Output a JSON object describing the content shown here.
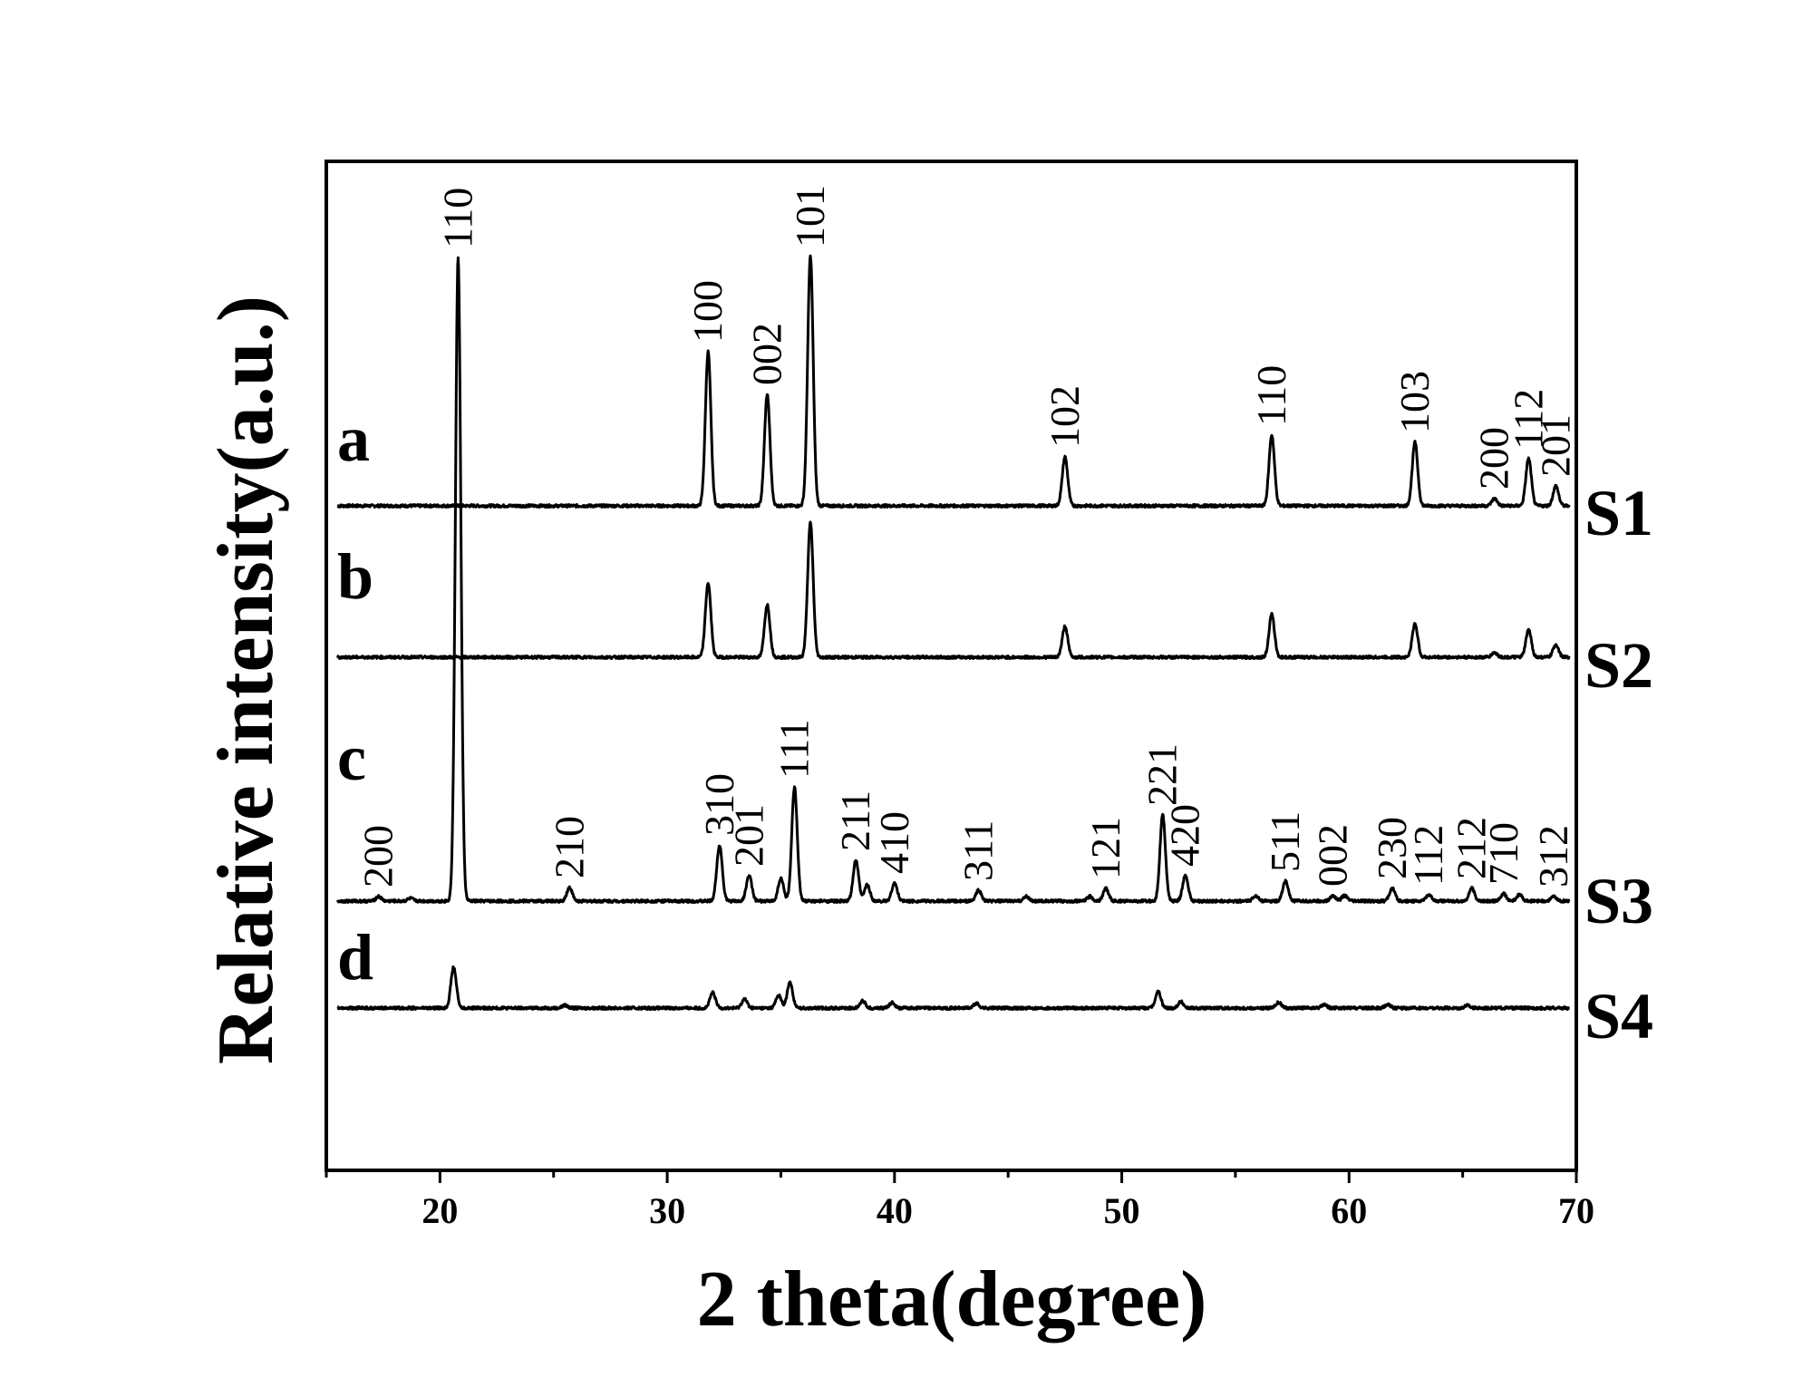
{
  "chart_data": {
    "type": "line",
    "title": "",
    "xlabel": "2 theta(degree)",
    "ylabel": "Relative intensity(a.u.)",
    "xlim": [
      15,
      70
    ],
    "xticks": [
      20,
      30,
      40,
      50,
      60,
      70
    ],
    "grid": false,
    "line_color": "#000000",
    "series": [
      {
        "name": "S1",
        "letter": "a",
        "baseline": 0,
        "peaks": [
          {
            "x": 31.8,
            "h": 170,
            "label": "100"
          },
          {
            "x": 34.4,
            "h": 123,
            "label": "002"
          },
          {
            "x": 36.3,
            "h": 275,
            "label": "101"
          },
          {
            "x": 47.5,
            "h": 54,
            "label": "102"
          },
          {
            "x": 56.6,
            "h": 78,
            "label": "110"
          },
          {
            "x": 62.9,
            "h": 70,
            "label": "103"
          },
          {
            "x": 66.4,
            "h": 8,
            "label": "200"
          },
          {
            "x": 67.9,
            "h": 52,
            "label": "112"
          },
          {
            "x": 69.1,
            "h": 22,
            "label": "201"
          }
        ]
      },
      {
        "name": "S2",
        "letter": "b",
        "baseline": 0,
        "peaks": [
          {
            "x": 31.8,
            "h": 82
          },
          {
            "x": 34.4,
            "h": 58
          },
          {
            "x": 36.3,
            "h": 148
          },
          {
            "x": 47.5,
            "h": 34
          },
          {
            "x": 56.6,
            "h": 47
          },
          {
            "x": 62.9,
            "h": 37
          },
          {
            "x": 66.4,
            "h": 5
          },
          {
            "x": 67.9,
            "h": 30
          },
          {
            "x": 69.1,
            "h": 14
          }
        ]
      },
      {
        "name": "S3",
        "letter": "c",
        "baseline": 0,
        "peaks": [
          {
            "x": 17.3,
            "h": 5,
            "label": "200"
          },
          {
            "x": 18.7,
            "h": 3
          },
          {
            "x": 20.8,
            "h": 710,
            "label": "110"
          },
          {
            "x": 25.7,
            "h": 15,
            "label": "210"
          },
          {
            "x": 32.3,
            "h": 62,
            "label": "310"
          },
          {
            "x": 33.6,
            "h": 28,
            "label": "201"
          },
          {
            "x": 35.0,
            "h": 25
          },
          {
            "x": 35.6,
            "h": 125,
            "label": "111"
          },
          {
            "x": 38.3,
            "h": 45,
            "label": "211"
          },
          {
            "x": 38.8,
            "h": 18
          },
          {
            "x": 40.0,
            "h": 20,
            "label": "410"
          },
          {
            "x": 43.7,
            "h": 12,
            "label": "311"
          },
          {
            "x": 45.8,
            "h": 5
          },
          {
            "x": 48.6,
            "h": 5
          },
          {
            "x": 49.3,
            "h": 14,
            "label": "121"
          },
          {
            "x": 51.8,
            "h": 95,
            "label": "221"
          },
          {
            "x": 52.8,
            "h": 28,
            "label": "420"
          },
          {
            "x": 55.9,
            "h": 6
          },
          {
            "x": 57.2,
            "h": 22,
            "label": "511"
          },
          {
            "x": 59.3,
            "h": 6,
            "label": "002"
          },
          {
            "x": 59.8,
            "h": 6
          },
          {
            "x": 61.9,
            "h": 14,
            "label": "230"
          },
          {
            "x": 63.5,
            "h": 7,
            "label": "112"
          },
          {
            "x": 65.4,
            "h": 14,
            "label": "212"
          },
          {
            "x": 66.8,
            "h": 8,
            "label": "710"
          },
          {
            "x": 67.5,
            "h": 7
          },
          {
            "x": 69.0,
            "h": 5,
            "label": "312"
          }
        ]
      },
      {
        "name": "S4",
        "letter": "d",
        "baseline": 0,
        "peaks": [
          {
            "x": 20.6,
            "h": 45
          },
          {
            "x": 25.5,
            "h": 3
          },
          {
            "x": 32.0,
            "h": 17
          },
          {
            "x": 33.4,
            "h": 10
          },
          {
            "x": 34.9,
            "h": 14
          },
          {
            "x": 35.4,
            "h": 28
          },
          {
            "x": 38.6,
            "h": 8
          },
          {
            "x": 39.9,
            "h": 6
          },
          {
            "x": 43.6,
            "h": 5
          },
          {
            "x": 51.6,
            "h": 18
          },
          {
            "x": 52.6,
            "h": 7
          },
          {
            "x": 56.9,
            "h": 6
          },
          {
            "x": 58.9,
            "h": 4
          },
          {
            "x": 61.7,
            "h": 4
          },
          {
            "x": 65.2,
            "h": 3
          }
        ]
      }
    ]
  }
}
